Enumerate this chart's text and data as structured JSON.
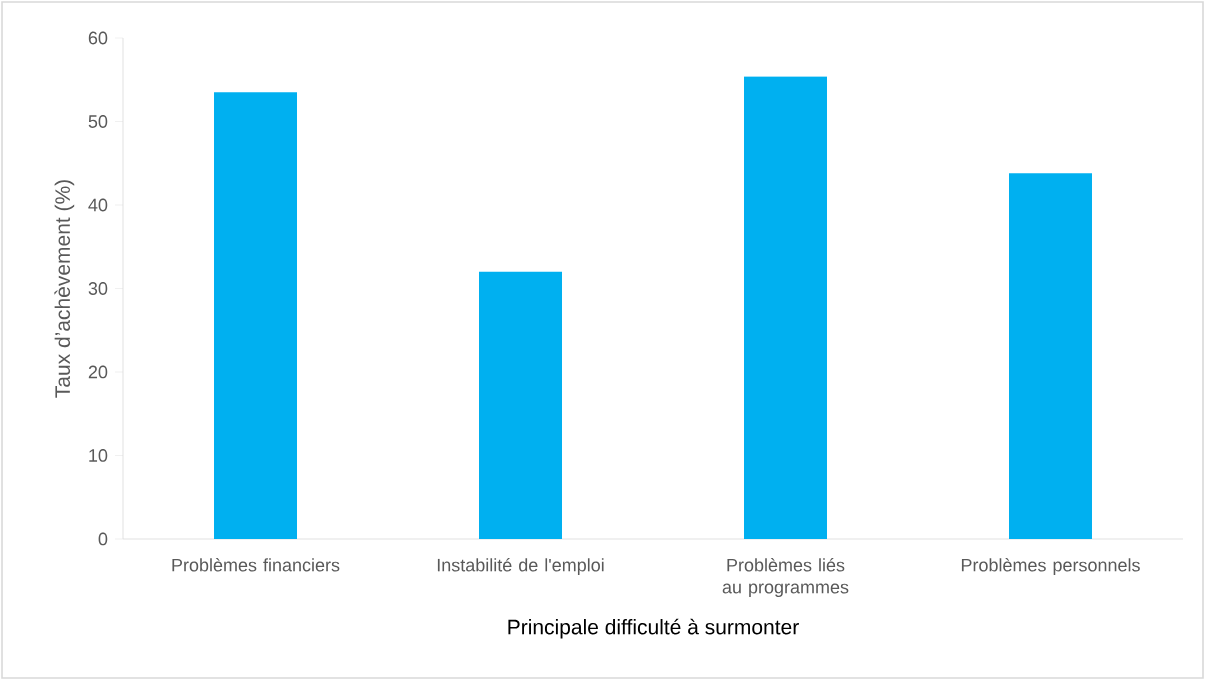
{
  "chart_data": {
    "type": "bar",
    "xlabel": "Principale difficulté à surmonter",
    "ylabel": "Taux d’achèvement (%)",
    "categories": [
      "Problèmes financiers",
      "Instabilité de l'emploi",
      "Problèmes liés au programmes",
      "Problèmes personnels"
    ],
    "values": [
      53.5,
      32.0,
      55.4,
      43.8
    ],
    "color": "#00b0f0",
    "ylim": [
      0,
      60
    ],
    "yticks": [
      0,
      10,
      20,
      30,
      40,
      50,
      60
    ],
    "grid": false
  }
}
